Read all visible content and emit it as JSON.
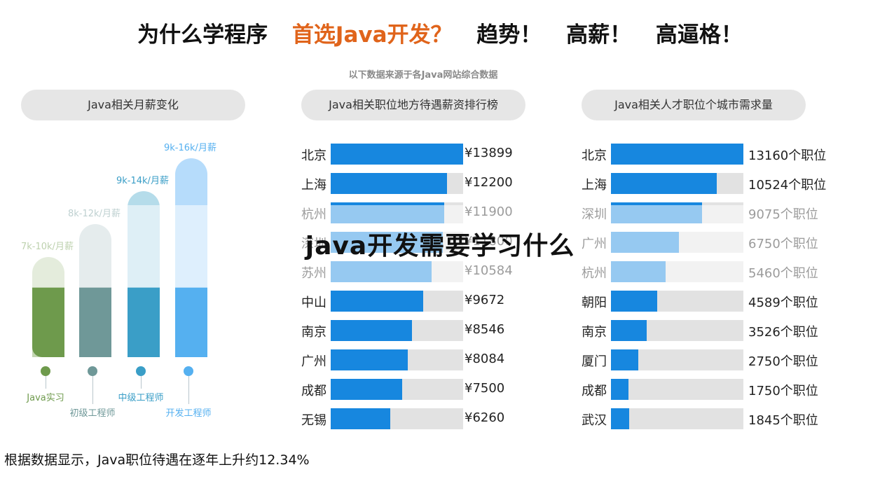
{
  "headline": {
    "part1": "为什么学程序",
    "part2": "首选Java开发？",
    "part3": "趋势！",
    "part4": "高薪！",
    "part5": "高逼格！"
  },
  "subnote": "以下数据来源于各Java网站综合数据",
  "overlay_title": "java开发需要学习什么",
  "footer": "根据数据显示，Java职位待遇在逐年上升约12.34%",
  "colors": {
    "accent": "#e0641b",
    "bar": "#1787df",
    "track": "#e2e2e2"
  },
  "chart_data": [
    {
      "type": "bar",
      "title": "Java相关月薪变化",
      "categories": [
        "Java实习",
        "初级工程师",
        "中级工程师",
        "开发工程师"
      ],
      "labels": [
        "7k-10k/月薪",
        "8k-12k/月薪",
        "9k-14k/月薪",
        "9k-16k/月薪"
      ],
      "values": [
        7,
        8,
        9,
        9
      ],
      "highs": [
        10,
        12,
        14,
        16
      ],
      "colors": [
        "#6e9a4c",
        "#6f9898",
        "#3a9ec7",
        "#55b0f0"
      ]
    },
    {
      "type": "bar",
      "title": "Java相关职位地方待遇薪资排行榜",
      "categories": [
        "北京",
        "上海",
        "杭州",
        "深圳",
        "苏州",
        "中山",
        "南京",
        "广州",
        "成都",
        "无锡"
      ],
      "values": [
        13899,
        12200,
        11900,
        11800,
        10584,
        9672,
        8546,
        8084,
        7500,
        6260
      ],
      "value_labels": [
        "¥13899",
        "¥12200",
        "¥11900",
        "¥11800",
        "¥10584",
        "¥9672",
        "¥8546",
        "¥8084",
        "¥7500",
        "¥6260"
      ],
      "max": 13899
    },
    {
      "type": "bar",
      "title": "Java相关人才职位个城市需求量",
      "categories": [
        "北京",
        "上海",
        "深圳",
        "广州",
        "杭州",
        "朝阳",
        "南京",
        "厦门",
        "成都",
        "武汉"
      ],
      "values": [
        13160,
        10524,
        9075,
        6750,
        5460,
        4589,
        3526,
        2750,
        1750,
        1845
      ],
      "value_labels": [
        "13160个职位",
        "10524个职位",
        "9075个职位",
        "6750个职位",
        "5460个职位",
        "4589个职位",
        "3526个职位",
        "2750个职位",
        "1750个职位",
        "1845个职位"
      ],
      "max": 13160
    }
  ]
}
